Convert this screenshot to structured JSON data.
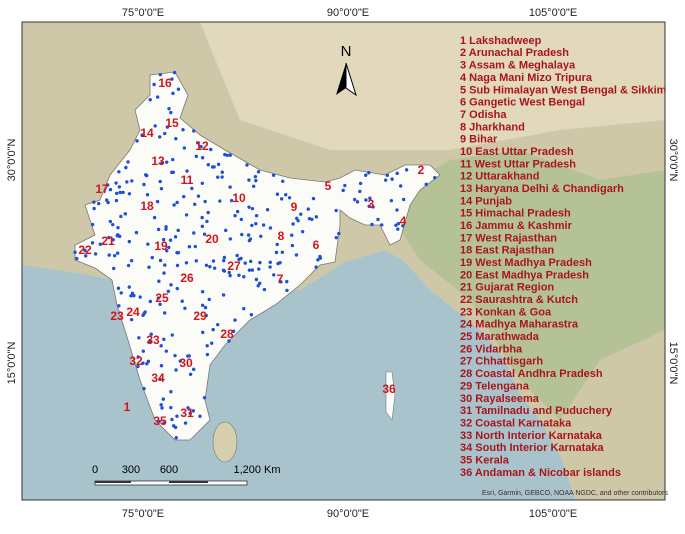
{
  "grid_labels": {
    "top": [
      "75°0'0\"E",
      "90°0'0\"E",
      "105°0'0\"E"
    ],
    "bottom": [
      "75°0'0\"E",
      "90°0'0\"E",
      "105°0'0\"E"
    ],
    "left": [
      "30°0'0\"N",
      "15°0'0\"N"
    ],
    "right": [
      "30°0'0\"N",
      "15°0'0\"N"
    ]
  },
  "north": "N",
  "legend": [
    "1 Lakshadweep",
    "2 Arunachal Pradesh",
    "3 Assam & Meghalaya",
    "4 Naga Mani Mizo Tripura",
    "5 Sub Himalayan West Bengal & Sikkim",
    "6 Gangetic West Bengal",
    "7 Odisha",
    "8 Jharkhand",
    "9 Bihar",
    "10 East Uttar Pradesh",
    "11 West Uttar Pradesh",
    "12 Uttarakhand",
    "13 Haryana Delhi & Chandigarh",
    "14 Punjab",
    "15 Himachal Pradesh",
    "16 Jammu & Kashmir",
    "17 West Rajasthan",
    "18 East Rajasthan",
    "19 West Madhya Pradesh",
    "20 East Madhya Pradesh",
    "21 Gujarat Region",
    "22 Saurashtra & Kutch",
    "23 Konkan & Goa",
    "24 Madhya Maharastra",
    "25 Marathwada",
    "26 Vidarbha",
    "27 Chhattisgarh",
    "28 Coastal Andhra Pradesh",
    "29 Telengana",
    "30 Rayalseema",
    "31 Tamilnadu and Puduchery",
    "32 Coastal Karnataka",
    "33 North Interior Karnataka",
    "34 South Interior Karnataka",
    "35 Kerala",
    "36 Andaman & Nicobar islands"
  ],
  "map_labels": [
    1,
    2,
    3,
    4,
    5,
    6,
    7,
    8,
    9,
    10,
    11,
    12,
    13,
    14,
    15,
    16,
    17,
    18,
    19,
    20,
    21,
    22,
    23,
    24,
    25,
    26,
    27,
    28,
    29,
    30,
    31,
    32,
    33,
    34,
    35,
    36
  ],
  "scale_bar": [
    0,
    300,
    600,
    "1,200 Km"
  ],
  "attribution": "Esri, Garmin, GEBCO, NOAA NGDC, and other contributors"
}
